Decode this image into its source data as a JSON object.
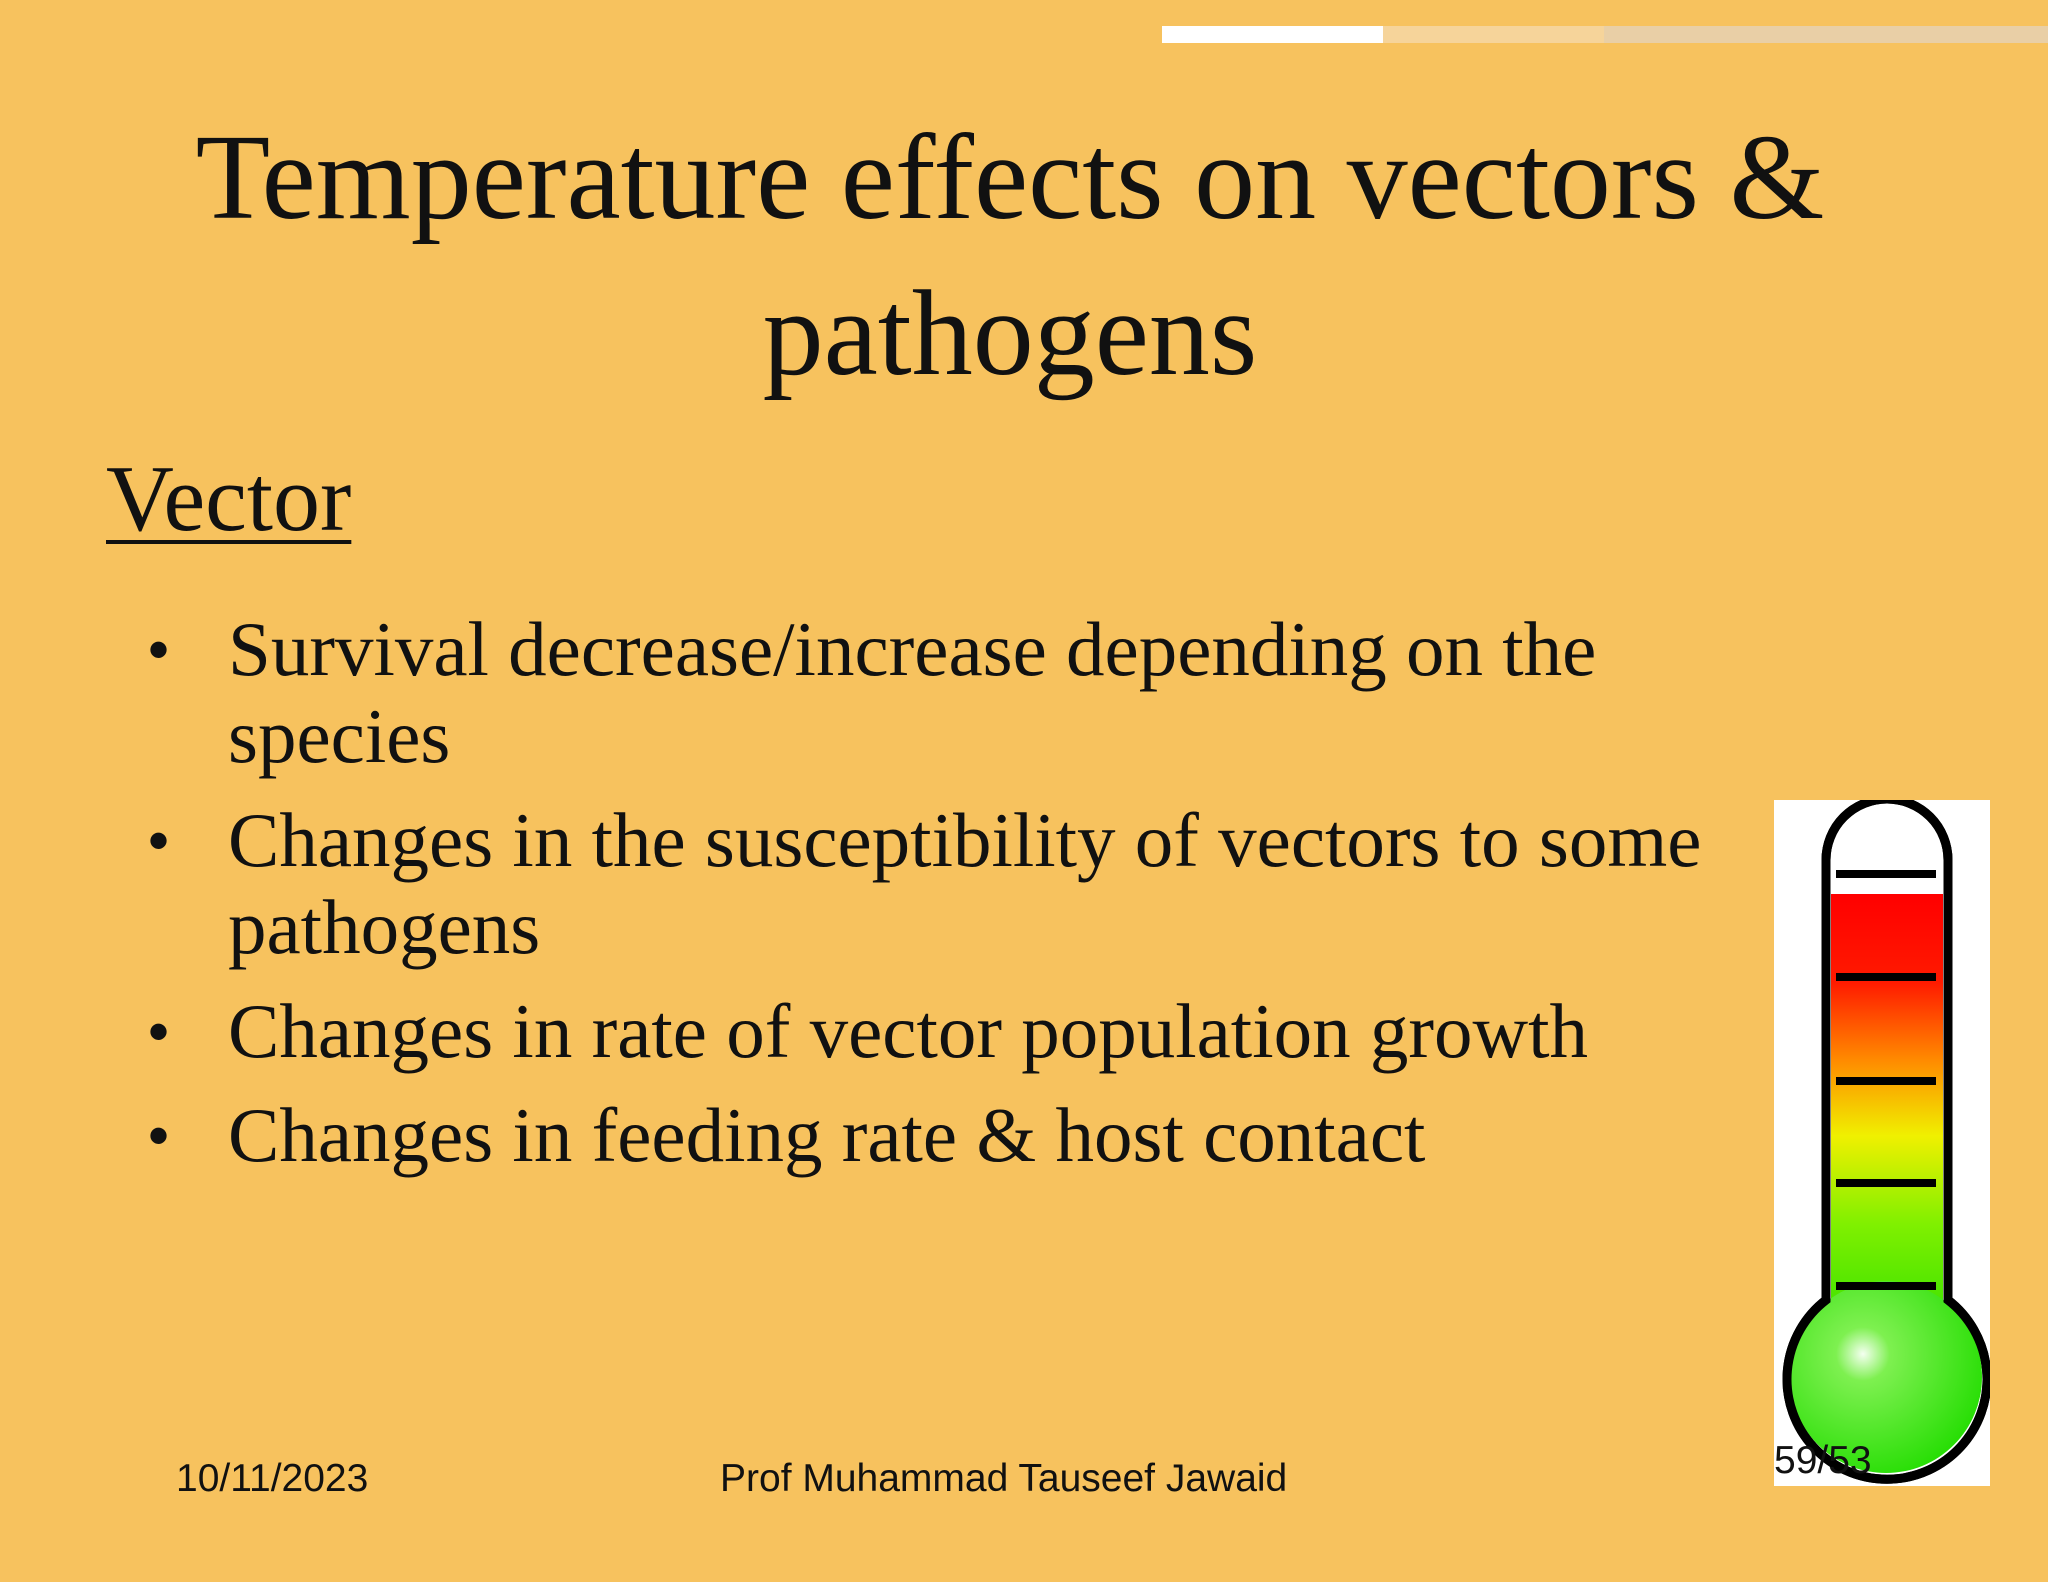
{
  "slide": {
    "title": "Temperature effects on vectors & pathogens",
    "heading": "Vector",
    "bullets": [
      "Survival decrease/increase depending on the species",
      "Changes in the susceptibility of vectors to some pathogens",
      "Changes in rate of vector population growth",
      "Changes in feeding rate & host contact"
    ],
    "footer": {
      "date": "10/11/2023",
      "author": "Prof Muhammad Tauseef Jawaid",
      "slide_number": "59/53"
    }
  }
}
